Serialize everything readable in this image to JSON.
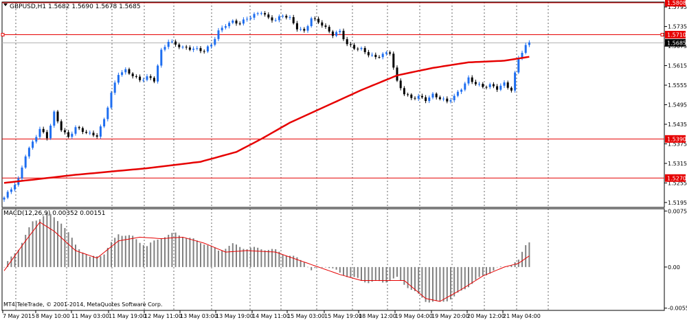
{
  "header": {
    "symbol_line": "GBPUSD,H1  1.5682 1.5690 1.5678 1.5685"
  },
  "macd_header": "MACD(12,26,9) 0.00352 0.00151",
  "footer": "MT4|TeleTrade, © 2001-2014, MetaQuotes Software Corp.",
  "price_axis": {
    "ticks": [
      "1.5795",
      "1.5735",
      "1.5675",
      "1.5615",
      "1.5555",
      "1.5495",
      "1.5435",
      "1.5375",
      "1.5315",
      "1.5255",
      "1.5195"
    ]
  },
  "price_lines": [
    {
      "label": "1.5808",
      "value": 1.5808,
      "color": "#e60000"
    },
    {
      "label": "1.5710",
      "value": 1.571,
      "color": "#e60000"
    },
    {
      "label": "1.5390",
      "value": 1.539,
      "color": "#e60000"
    },
    {
      "label": "1.5270",
      "value": 1.527,
      "color": "#e60000"
    }
  ],
  "current_price": {
    "label": "1.5685",
    "value": 1.5685
  },
  "macd_axis": {
    "ticks": [
      "0.0075",
      "0.00",
      "-0.0055"
    ]
  },
  "time_axis": {
    "labels": [
      "7 May 2015",
      "8 May 10:00",
      "11 May 03:00",
      "11 May 19:00",
      "12 May 11:00",
      "13 May 03:00",
      "13 May 19:00",
      "14 May 11:00",
      "15 May 03:00",
      "15 May 19:00",
      "18 May 12:00",
      "19 May 04:00",
      "19 May 20:00",
      "20 May 12:00",
      "21 May 04:00"
    ]
  },
  "colors": {
    "bull": "#1e6ef0",
    "bear": "#000000",
    "ma": "#e60000",
    "macd_hist": "#808080",
    "macd_signal": "#e60000",
    "level": "#e60000"
  },
  "chart_data": [
    {
      "type": "candlestick",
      "title": "GBPUSD,H1",
      "symbol": "GBPUSD",
      "timeframe": "H1",
      "last_bar": {
        "open": 1.5682,
        "high": 1.569,
        "low": 1.5678,
        "close": 1.5685
      },
      "ylim": [
        1.518,
        1.581
      ],
      "close_path": [
        [
          0,
          1.521
        ],
        [
          4,
          1.5265
        ],
        [
          6,
          1.534
        ],
        [
          10,
          1.542
        ],
        [
          12,
          1.5395
        ],
        [
          14,
          1.547
        ],
        [
          16,
          1.542
        ],
        [
          18,
          1.5395
        ],
        [
          20,
          1.5425
        ],
        [
          24,
          1.5405
        ],
        [
          26,
          1.54
        ],
        [
          28,
          1.545
        ],
        [
          30,
          1.553
        ],
        [
          32,
          1.559
        ],
        [
          34,
          1.56
        ],
        [
          36,
          1.5585
        ],
        [
          38,
          1.557
        ],
        [
          40,
          1.558
        ],
        [
          42,
          1.557
        ],
        [
          44,
          1.566
        ],
        [
          46,
          1.569
        ],
        [
          48,
          1.568
        ],
        [
          50,
          1.567
        ],
        [
          54,
          1.5665
        ],
        [
          56,
          1.566
        ],
        [
          58,
          1.568
        ],
        [
          60,
          1.572
        ],
        [
          62,
          1.574
        ],
        [
          64,
          1.575
        ],
        [
          66,
          1.5745
        ],
        [
          68,
          1.576
        ],
        [
          70,
          1.577
        ],
        [
          72,
          1.578
        ],
        [
          74,
          1.576
        ],
        [
          76,
          1.5755
        ],
        [
          78,
          1.577
        ],
        [
          80,
          1.576
        ],
        [
          82,
          1.573
        ],
        [
          84,
          1.572
        ],
        [
          86,
          1.576
        ],
        [
          88,
          1.575
        ],
        [
          90,
          1.573
        ],
        [
          92,
          1.571
        ],
        [
          94,
          1.572
        ],
        [
          96,
          1.568
        ],
        [
          98,
          1.567
        ],
        [
          100,
          1.5665
        ],
        [
          102,
          1.565
        ],
        [
          104,
          1.564
        ],
        [
          106,
          1.565
        ],
        [
          108,
          1.5655
        ],
        [
          110,
          1.5565
        ],
        [
          112,
          1.553
        ],
        [
          114,
          1.5515
        ],
        [
          116,
          1.552
        ],
        [
          118,
          1.551
        ],
        [
          120,
          1.5525
        ],
        [
          122,
          1.5515
        ],
        [
          124,
          1.5505
        ],
        [
          126,
          1.552
        ],
        [
          128,
          1.5545
        ],
        [
          130,
          1.5575
        ],
        [
          132,
          1.556
        ],
        [
          134,
          1.555
        ],
        [
          136,
          1.5555
        ],
        [
          138,
          1.5545
        ],
        [
          140,
          1.556
        ],
        [
          142,
          1.554
        ],
        [
          144,
          1.564
        ],
        [
          146,
          1.5675
        ],
        [
          147,
          1.5685
        ]
      ],
      "moving_average": [
        [
          0,
          1.5255
        ],
        [
          20,
          1.528
        ],
        [
          40,
          1.53
        ],
        [
          55,
          1.532
        ],
        [
          65,
          1.535
        ],
        [
          72,
          1.539
        ],
        [
          80,
          1.544
        ],
        [
          90,
          1.549
        ],
        [
          100,
          1.554
        ],
        [
          110,
          1.5585
        ],
        [
          120,
          1.5608
        ],
        [
          130,
          1.5625
        ],
        [
          140,
          1.563
        ],
        [
          147,
          1.5642
        ]
      ]
    },
    {
      "type": "bar",
      "title": "MACD(12,26,9)",
      "macd_value": 0.00352,
      "signal_value": 0.00151,
      "ylim": [
        -0.0058,
        0.0078
      ],
      "histogram_path": [
        [
          0,
          0.0
        ],
        [
          4,
          0.0025
        ],
        [
          8,
          0.006
        ],
        [
          12,
          0.0072
        ],
        [
          16,
          0.006
        ],
        [
          20,
          0.003
        ],
        [
          24,
          0.0012
        ],
        [
          28,
          0.0018
        ],
        [
          32,
          0.0045
        ],
        [
          36,
          0.004
        ],
        [
          40,
          0.0028
        ],
        [
          44,
          0.004
        ],
        [
          48,
          0.0045
        ],
        [
          52,
          0.0038
        ],
        [
          56,
          0.0032
        ],
        [
          60,
          0.0022
        ],
        [
          64,
          0.003
        ],
        [
          68,
          0.0025
        ],
        [
          72,
          0.0025
        ],
        [
          76,
          0.0022
        ],
        [
          80,
          0.0015
        ],
        [
          84,
          0.0008
        ],
        [
          86,
          -0.0005
        ],
        [
          90,
          0.0002
        ],
        [
          94,
          -0.0008
        ],
        [
          98,
          -0.0015
        ],
        [
          102,
          -0.002
        ],
        [
          106,
          -0.002
        ],
        [
          110,
          -0.0015
        ],
        [
          114,
          -0.003
        ],
        [
          118,
          -0.0045
        ],
        [
          122,
          -0.0048
        ],
        [
          126,
          -0.004
        ],
        [
          130,
          -0.0025
        ],
        [
          134,
          -0.0012
        ],
        [
          138,
          -0.0002
        ],
        [
          140,
          0.0
        ],
        [
          144,
          0.0008
        ],
        [
          146,
          0.003
        ],
        [
          147,
          0.0035
        ]
      ],
      "signal_path": [
        [
          0,
          -0.0005
        ],
        [
          6,
          0.0035
        ],
        [
          10,
          0.006
        ],
        [
          14,
          0.0048
        ],
        [
          20,
          0.0022
        ],
        [
          26,
          0.0012
        ],
        [
          32,
          0.0035
        ],
        [
          38,
          0.004
        ],
        [
          44,
          0.0038
        ],
        [
          50,
          0.004
        ],
        [
          56,
          0.0032
        ],
        [
          62,
          0.002
        ],
        [
          68,
          0.0022
        ],
        [
          76,
          0.002
        ],
        [
          82,
          0.001
        ],
        [
          88,
          0.0
        ],
        [
          94,
          -0.001
        ],
        [
          100,
          -0.0018
        ],
        [
          106,
          -0.0018
        ],
        [
          112,
          -0.0018
        ],
        [
          118,
          -0.0042
        ],
        [
          122,
          -0.0046
        ],
        [
          128,
          -0.003
        ],
        [
          134,
          -0.0012
        ],
        [
          140,
          0.0
        ],
        [
          144,
          0.0005
        ],
        [
          147,
          0.0015
        ]
      ]
    }
  ]
}
